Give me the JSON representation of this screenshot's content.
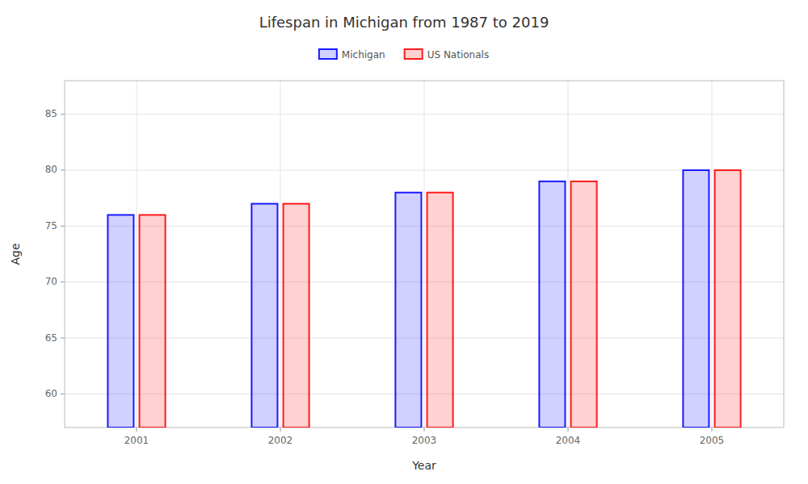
{
  "chart_data": {
    "type": "bar",
    "title": "Lifespan in Michigan from 1987 to 2019",
    "x_label": "Year",
    "y_label": "Age",
    "categories": [
      "2001",
      "2002",
      "2003",
      "2004",
      "2005"
    ],
    "series": [
      {
        "name": "Michigan",
        "color": "#1a1aff",
        "values": [
          76,
          77,
          78,
          79,
          80
        ]
      },
      {
        "name": "US Nationals",
        "color": "#ff1a1a",
        "values": [
          76,
          77,
          78,
          79,
          80
        ]
      }
    ],
    "ylim": [
      57,
      88
    ],
    "yticks": [
      60,
      65,
      70,
      75,
      80,
      85
    ],
    "grid": true,
    "legend": "top"
  }
}
